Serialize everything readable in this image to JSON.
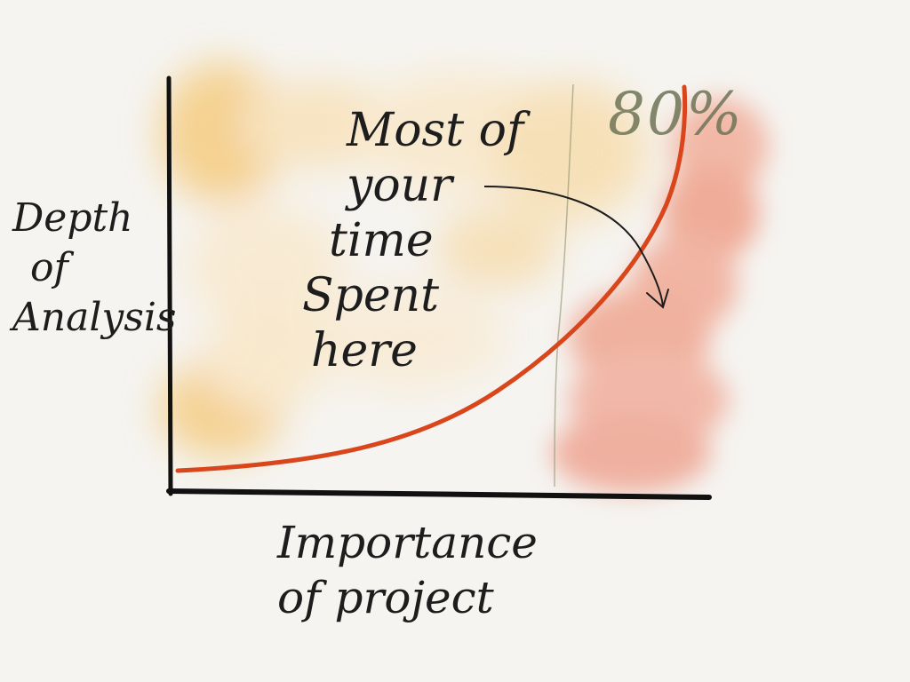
{
  "diagram": {
    "y_axis_label": [
      "Depth",
      "of",
      "Analysis"
    ],
    "x_axis_label": [
      "Importance",
      "of project"
    ],
    "annotation": [
      "Most of",
      "your",
      "time",
      "Spent",
      "here"
    ],
    "percent_label": "80%"
  },
  "colors": {
    "background": "#f5f4f1",
    "axis": "#111111",
    "curve": "#d9461b",
    "wash_yellow": "#f6c15a",
    "wash_salmon": "#ee9a85",
    "divider": "#8a8f6a",
    "ink": "#1d1d1d"
  }
}
